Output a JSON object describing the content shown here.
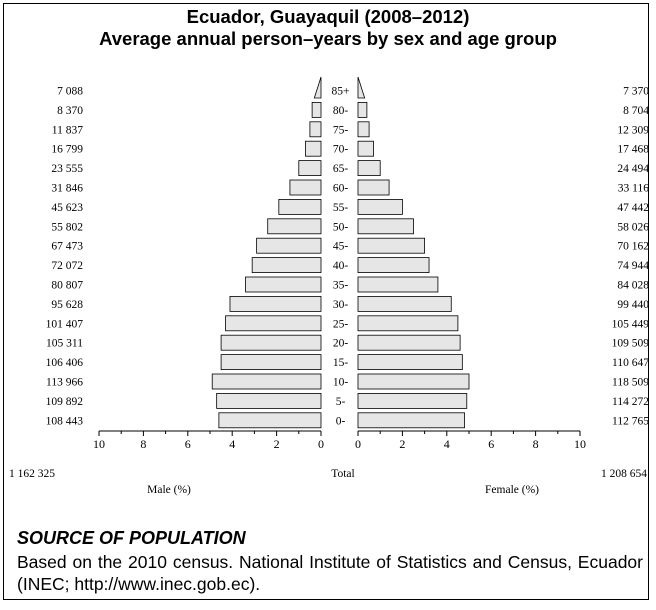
{
  "header": {
    "title_line1": "Ecuador, Guayaquil (2008–2012)",
    "title_line2": "Average annual person–years by sex and age group"
  },
  "source": {
    "heading": "SOURCE OF POPULATION",
    "text": "Based on the 2010 census. National Institute of Statistics and Census, Ecuador (INEC; http://www.inec.gob.ec)."
  },
  "chart_data": {
    "type": "bar",
    "orientation": "horizontal-pyramid",
    "categories": [
      "0-",
      "5-",
      "10-",
      "15-",
      "20-",
      "25-",
      "30-",
      "35-",
      "40-",
      "45-",
      "50-",
      "55-",
      "60-",
      "65-",
      "70-",
      "75-",
      "80-",
      "85+"
    ],
    "male_counts": [
      "108 443",
      "109 892",
      "113 966",
      "106 406",
      "105 311",
      "101 407",
      "95 628",
      "80 807",
      "72 072",
      "67 473",
      "55 802",
      "45 623",
      "31 846",
      "23 555",
      "16 799",
      "11 837",
      "8 370",
      "7 088"
    ],
    "female_counts": [
      "112 765",
      "114 272",
      "118 509",
      "110 647",
      "109 509",
      "105 449",
      "99 440",
      "84 028",
      "74 944",
      "70 162",
      "58 026",
      "47 442",
      "33 116",
      "24 494",
      "17 468",
      "12 309",
      "8 704",
      "7 370"
    ],
    "series": [
      {
        "name": "Male (%)",
        "values": [
          4.6,
          4.7,
          4.9,
          4.5,
          4.5,
          4.3,
          4.1,
          3.4,
          3.1,
          2.9,
          2.4,
          1.9,
          1.4,
          1.0,
          0.7,
          0.5,
          0.4,
          0.3
        ]
      },
      {
        "name": "Female (%)",
        "values": [
          4.8,
          4.9,
          5.0,
          4.7,
          4.6,
          4.5,
          4.2,
          3.6,
          3.2,
          3.0,
          2.5,
          2.0,
          1.4,
          1.0,
          0.7,
          0.5,
          0.4,
          0.3
        ]
      }
    ],
    "xlim": [
      0,
      10
    ],
    "x_ticks": [
      "0",
      "2",
      "4",
      "6",
      "8",
      "10"
    ],
    "male_total": "1 162 325",
    "female_total": "1 208 654",
    "total_label": "Total",
    "male_xlabel": "Male (%)",
    "female_xlabel": "Female (%)",
    "bar_fill": "#e6e6e6",
    "bar_stroke": "#000000"
  }
}
